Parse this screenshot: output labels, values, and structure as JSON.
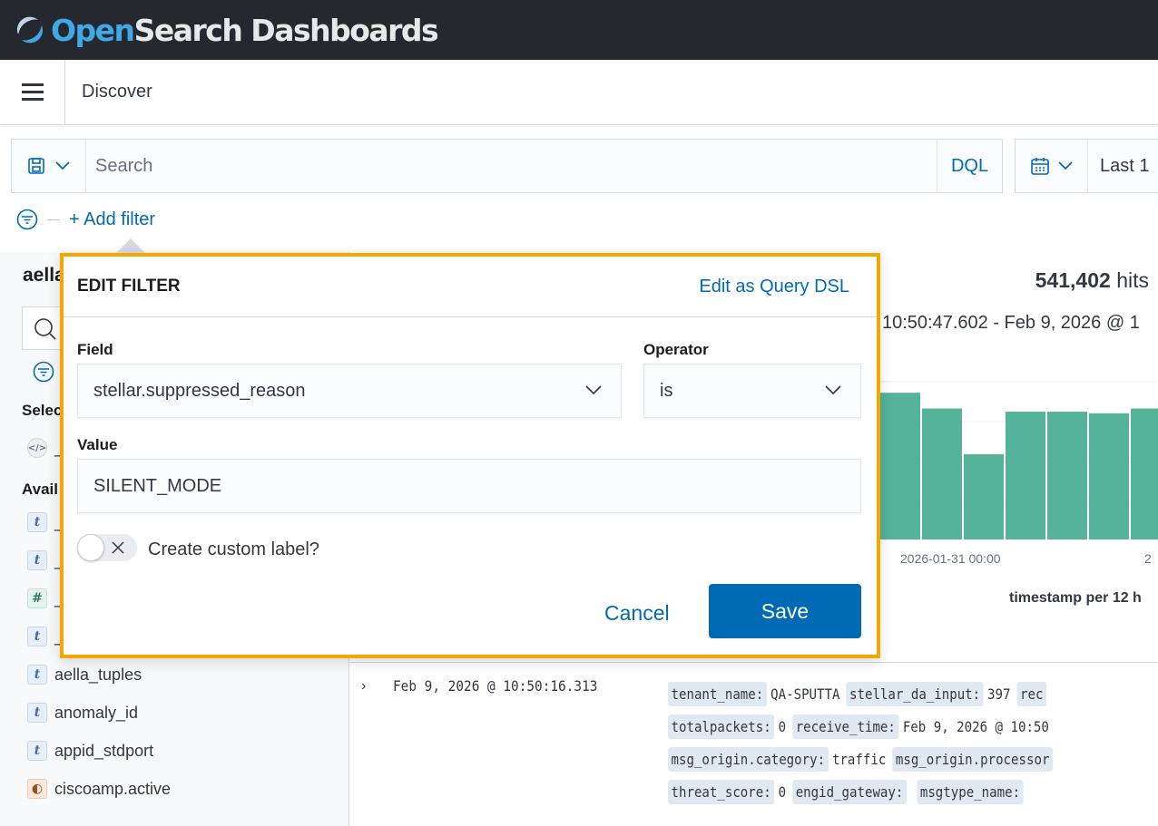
{
  "app": {
    "logo_part1": "Open",
    "logo_part2": "Search Dashboards",
    "breadcrumb": "Discover"
  },
  "query": {
    "placeholder": "Search",
    "language": "DQL",
    "date_label": "Last 1"
  },
  "filters": {
    "add_filter": "+ Add filter"
  },
  "sidebar": {
    "index_title": "aella",
    "selected_heading": "Selec",
    "available_heading": "Avail",
    "selected_fields": [
      {
        "type": "source",
        "name": "_"
      }
    ],
    "available_fields": [
      {
        "type": "t",
        "name": "_"
      },
      {
        "type": "t",
        "name": "_"
      },
      {
        "type": "#",
        "name": "_"
      },
      {
        "type": "t",
        "name": "_"
      },
      {
        "type": "t",
        "name": "aella_tuples"
      },
      {
        "type": "t",
        "name": "anomaly_id"
      },
      {
        "type": "t",
        "name": "appid_stdport"
      },
      {
        "type": "geo",
        "name": "ciscoamp.active"
      }
    ]
  },
  "main": {
    "hits_count": "541,402",
    "hits_label": "hits",
    "time_range": "10:50:47.602 - Feb 9, 2026 @ 1",
    "chart_data": {
      "type": "bar",
      "bar_relative_heights": [
        0.93,
        0.83,
        0.54,
        0.81,
        0.81,
        0.8,
        0.83
      ],
      "x_ticks": [
        "2026-01-31 00:00",
        "2"
      ],
      "xlabel": "timestamp per 12 h",
      "color": "#54b399"
    },
    "document": {
      "timestamp": "Feb 9, 2026 @ 10:50:16.313",
      "lines": [
        [
          {
            "k": "tenant_name:",
            "v": "QA-SPUTTA"
          },
          {
            "k": "stellar_da_input:",
            "v": "397"
          },
          {
            "k": "rec",
            "v": ""
          }
        ],
        [
          {
            "k": "totalpackets:",
            "v": "0"
          },
          {
            "k": "receive_time:",
            "v": "Feb 9, 2026 @ 10:50"
          }
        ],
        [
          {
            "k": "msg_origin.category:",
            "v": "traffic"
          },
          {
            "k": "msg_origin.processor",
            "v": ""
          }
        ],
        [
          {
            "k": "threat_score:",
            "v": "0"
          },
          {
            "k": "engid_gateway:",
            "v": ""
          },
          {
            "k": "msgtype_name:",
            "v": ""
          }
        ]
      ]
    }
  },
  "dialog": {
    "title": "EDIT FILTER",
    "edit_dsl": "Edit as Query DSL",
    "field_label": "Field",
    "field_value": "stellar.suppressed_reason",
    "operator_label": "Operator",
    "operator_value": "is",
    "value_label": "Value",
    "value_value": "SILENT_MODE",
    "custom_label": "Create custom label?",
    "custom_label_enabled": false,
    "cancel": "Cancel",
    "save": "Save",
    "accent": "#f5a700",
    "primary": "#006bb4"
  }
}
